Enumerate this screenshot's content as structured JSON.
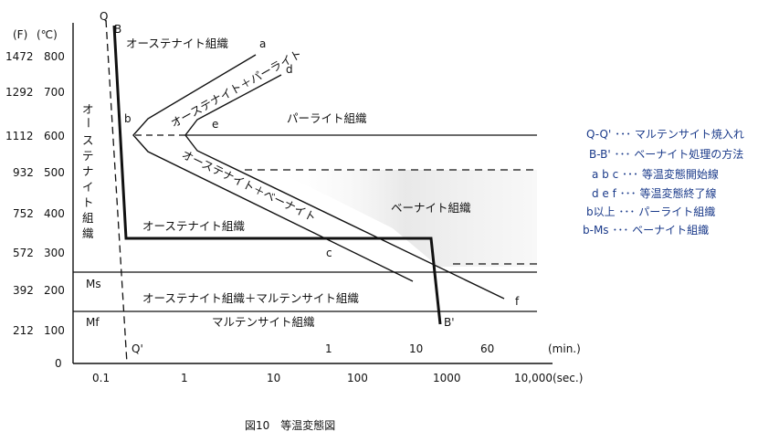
{
  "header": {
    "unit_f": "(F)",
    "unit_c": "(℃)",
    "curve_q": "Q",
    "curve_b": "B"
  },
  "y_ticks": [
    {
      "f": "1472",
      "c": "800"
    },
    {
      "f": "1292",
      "c": "700"
    },
    {
      "f": "1112",
      "c": "600"
    },
    {
      "f": "932",
      "c": "500"
    },
    {
      "f": "752",
      "c": "400"
    },
    {
      "f": "572",
      "c": "300"
    },
    {
      "f": "392",
      "c": "200"
    },
    {
      "f": "212",
      "c": "100"
    }
  ],
  "y_zero": "0",
  "x_ticks_sec": [
    "0.1",
    "1",
    "10",
    "100",
    "1000",
    "10,000(sec.)"
  ],
  "x_ticks_min": [
    "1",
    "10",
    "60",
    "(min.)"
  ],
  "labels": {
    "austenite_vertical": [
      "オ",
      "ー",
      "ス",
      "テ",
      "ナ",
      "イ",
      "ト",
      "組",
      "織"
    ],
    "austenite_top": "オーステナイト組織",
    "aust_pearlite": "オーステナイト＋パーライト",
    "aust_bainite": "オーステナイト＋ベーナイト",
    "pearlite": "パーライト組織",
    "bainite": "ベーナイト組織",
    "austenite_mid": "オーステナイト組織",
    "aust_martensite": "オーステナイト組織＋マルテンサイト組織",
    "martensite": "マルテンサイト組織",
    "ms": "Ms",
    "mf": "Mf",
    "pt_a": "a",
    "pt_b": "b",
    "pt_c": "c",
    "pt_d": "d",
    "pt_e": "e",
    "pt_f": "f",
    "q_prime": "Q'",
    "b_prime": "B'"
  },
  "legend": [
    "Q-Q' ･･･ マルテンサイト焼入れ",
    "B-B' ･･･ ベーナイト処理の方法",
    "a b c ･･･ 等温変態開始線",
    "d e f ･･･ 等温変態終了線",
    "b以上 ･･･ パーライト組織",
    "b-Ms ･･･ ベーナイト組織"
  ],
  "caption": "図10　等温変態図"
}
